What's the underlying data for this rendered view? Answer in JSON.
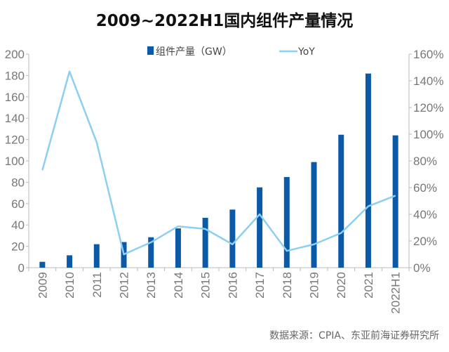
{
  "title": "2009~2022H1国内组件产量情况",
  "source": "数据来源：CPIA、东亚前海证券研究所",
  "colors": {
    "bar": "#0b5aa8",
    "line": "#8ccff2"
  },
  "chart_data": {
    "type": "bar+line",
    "title": "2009~2022H1国内组件产量情况",
    "categories": [
      "2009",
      "2010",
      "2011",
      "2012",
      "2013",
      "2014",
      "2015",
      "2016",
      "2017",
      "2018",
      "2019",
      "2020",
      "2021",
      "2022H1"
    ],
    "series": [
      {
        "name": "组件产量（GW）",
        "type": "bar",
        "axis": "left",
        "values": [
          5.5,
          11.6,
          22,
          24,
          28.5,
          36.8,
          46.7,
          54.4,
          75.2,
          84.9,
          98.9,
          124.5,
          181.8,
          123.9
        ]
      },
      {
        "name": "YoY",
        "type": "line",
        "axis": "right",
        "values": [
          73,
          147,
          94,
          10,
          19,
          31,
          29,
          17.5,
          40,
          12.6,
          17.5,
          26,
          46,
          54
        ]
      }
    ],
    "left_axis": {
      "ylim": [
        0,
        200
      ],
      "ticks": [
        "0",
        "20",
        "40",
        "60",
        "80",
        "100",
        "120",
        "140",
        "160",
        "180",
        "200"
      ]
    },
    "right_axis": {
      "ylim": [
        0,
        160
      ],
      "ticks": [
        "0%",
        "20%",
        "40%",
        "60%",
        "80%",
        "100%",
        "120%",
        "140%",
        "160%"
      ]
    },
    "legend": "top",
    "grid": false
  }
}
